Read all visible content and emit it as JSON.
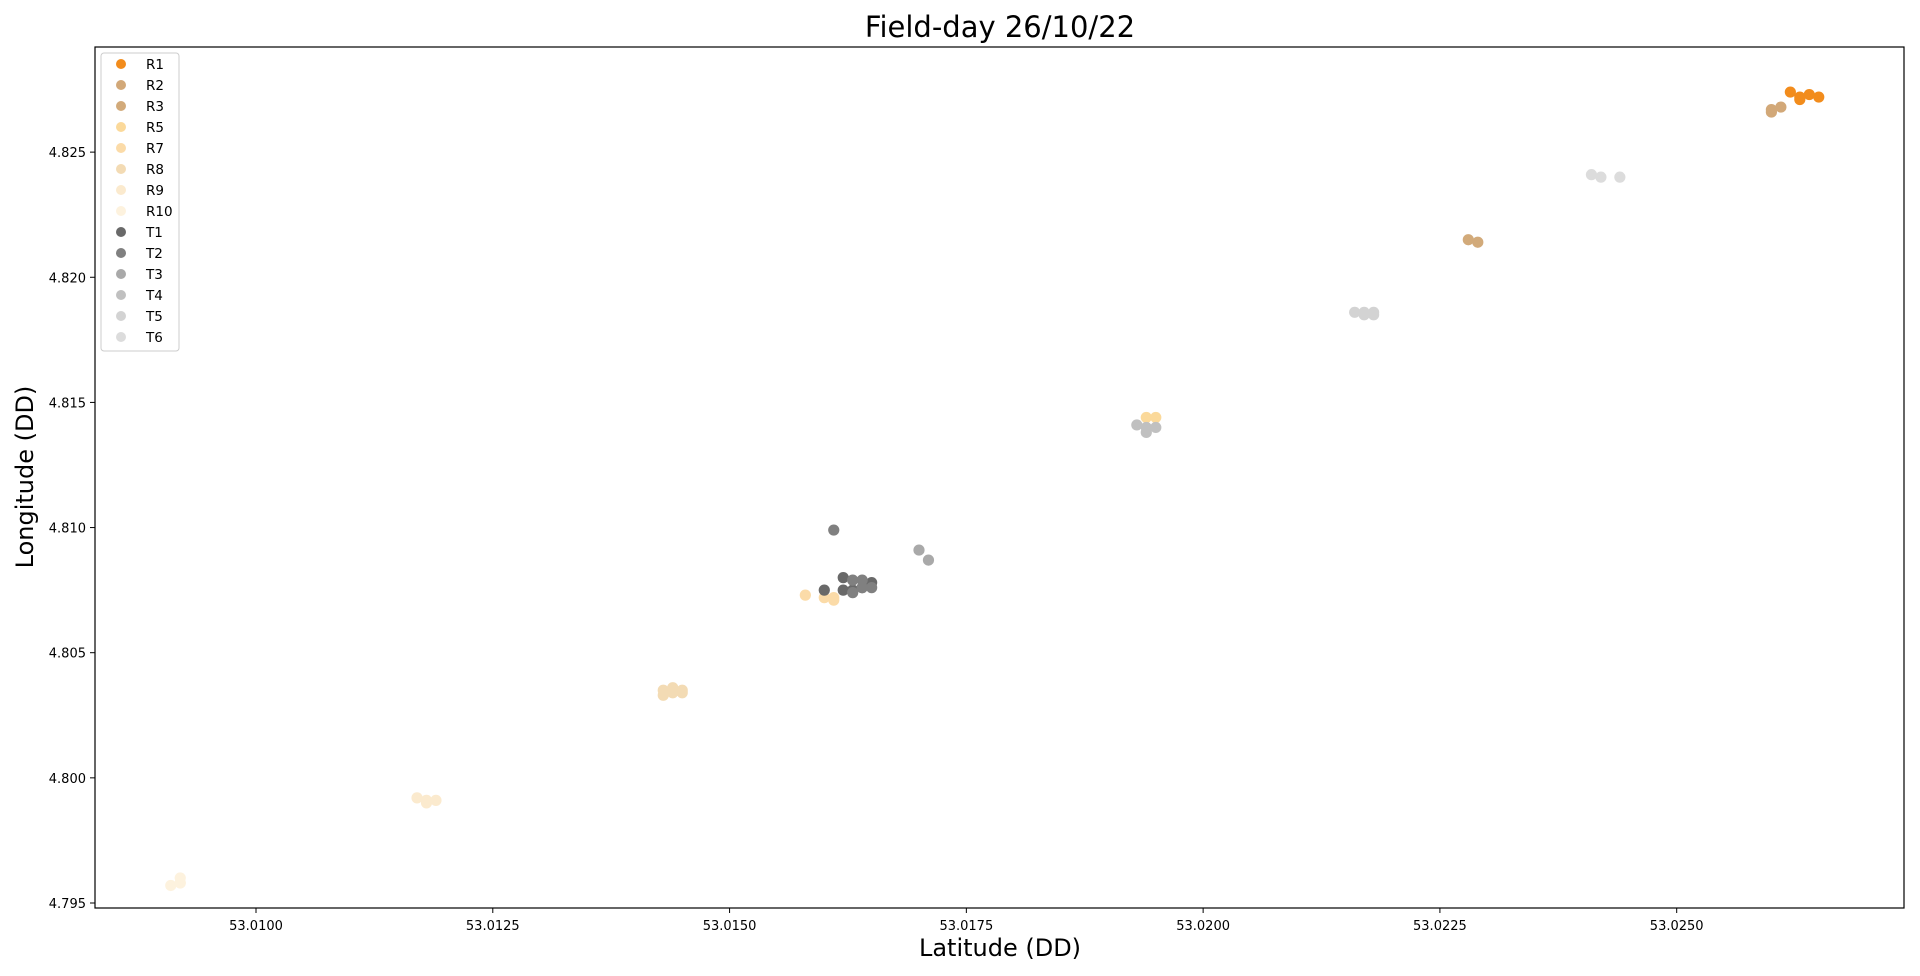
{
  "chart_data": {
    "type": "scatter",
    "title": "Field-day 26/10/22",
    "xlabel": "Latitude (DD)",
    "ylabel": "Longitude (DD)",
    "xlim": [
      53.0083,
      53.0274
    ],
    "ylim": [
      4.7948,
      4.8292
    ],
    "xticks": [
      53.01,
      53.0125,
      53.015,
      53.0175,
      53.02,
      53.0225,
      53.025
    ],
    "xtick_labels": [
      "53.0100",
      "53.0125",
      "53.0150",
      "53.0175",
      "53.0200",
      "53.0225",
      "53.0250"
    ],
    "yticks": [
      4.795,
      4.8,
      4.805,
      4.81,
      4.815,
      4.82,
      4.825
    ],
    "ytick_labels": [
      "4.795",
      "4.800",
      "4.805",
      "4.810",
      "4.815",
      "4.820",
      "4.825"
    ],
    "grid": false,
    "legend_position": "top-left",
    "series": [
      {
        "name": "R1",
        "color": "#f28c1c",
        "points": [
          [
            53.0262,
            4.8274
          ],
          [
            53.0263,
            4.8271
          ],
          [
            53.0264,
            4.8273
          ],
          [
            53.0263,
            4.8272
          ],
          [
            53.0265,
            4.8272
          ]
        ]
      },
      {
        "name": "R2",
        "color": "#d2a878",
        "points": [
          [
            53.026,
            4.8266
          ],
          [
            53.026,
            4.8267
          ],
          [
            53.0261,
            4.8268
          ]
        ]
      },
      {
        "name": "R3",
        "color": "#d2aa7a",
        "points": [
          [
            53.0228,
            4.8215
          ],
          [
            53.0229,
            4.8214
          ]
        ]
      },
      {
        "name": "R5",
        "color": "#fbd99a",
        "points": [
          [
            53.0194,
            4.8144
          ],
          [
            53.0195,
            4.8144
          ]
        ]
      },
      {
        "name": "R7",
        "color": "#fbdba8",
        "points": [
          [
            53.0158,
            4.8073
          ],
          [
            53.016,
            4.8072
          ],
          [
            53.0161,
            4.8072
          ],
          [
            53.0161,
            4.8071
          ]
        ]
      },
      {
        "name": "R8",
        "color": "#f3dbb4",
        "points": [
          [
            53.0143,
            4.8033
          ],
          [
            53.0143,
            4.8035
          ],
          [
            53.0144,
            4.8036
          ],
          [
            53.0144,
            4.8034
          ],
          [
            53.0145,
            4.8035
          ],
          [
            53.0145,
            4.8034
          ]
        ]
      },
      {
        "name": "R9",
        "color": "#fbeace",
        "points": [
          [
            53.0117,
            4.7992
          ],
          [
            53.0118,
            4.7991
          ],
          [
            53.0118,
            4.799
          ],
          [
            53.0119,
            4.7991
          ]
        ]
      },
      {
        "name": "R10",
        "color": "#fdf2de",
        "points": [
          [
            53.0091,
            4.7957
          ],
          [
            53.0092,
            4.7958
          ],
          [
            53.0092,
            4.796
          ],
          [
            53.0092,
            4.7958
          ]
        ]
      },
      {
        "name": "T1",
        "color": "#696969",
        "points": [
          [
            53.016,
            4.8075
          ],
          [
            53.0162,
            4.8075
          ],
          [
            53.0163,
            4.8075
          ],
          [
            53.0164,
            4.8076
          ],
          [
            53.0165,
            4.8078
          ],
          [
            53.0162,
            4.808
          ]
        ]
      },
      {
        "name": "T2",
        "color": "#808080",
        "points": [
          [
            53.0161,
            4.8099
          ],
          [
            53.0163,
            4.8079
          ],
          [
            53.0164,
            4.8079
          ],
          [
            53.0164,
            4.8076
          ],
          [
            53.0165,
            4.8076
          ],
          [
            53.0163,
            4.8074
          ]
        ]
      },
      {
        "name": "T3",
        "color": "#a9a9a9",
        "points": [
          [
            53.017,
            4.8091
          ],
          [
            53.0171,
            4.8087
          ]
        ]
      },
      {
        "name": "T4",
        "color": "#c0c0c0",
        "points": [
          [
            53.0193,
            4.8141
          ],
          [
            53.0194,
            4.8138
          ],
          [
            53.0194,
            4.814
          ],
          [
            53.0195,
            4.814
          ]
        ]
      },
      {
        "name": "T5",
        "color": "#d3d3d3",
        "points": [
          [
            53.0216,
            4.8186
          ],
          [
            53.0217,
            4.8186
          ],
          [
            53.0217,
            4.8185
          ],
          [
            53.0218,
            4.8185
          ],
          [
            53.0218,
            4.8186
          ]
        ]
      },
      {
        "name": "T6",
        "color": "#dcdcdc",
        "points": [
          [
            53.0241,
            4.8241
          ],
          [
            53.0242,
            4.824
          ],
          [
            53.0244,
            4.824
          ]
        ]
      }
    ]
  }
}
